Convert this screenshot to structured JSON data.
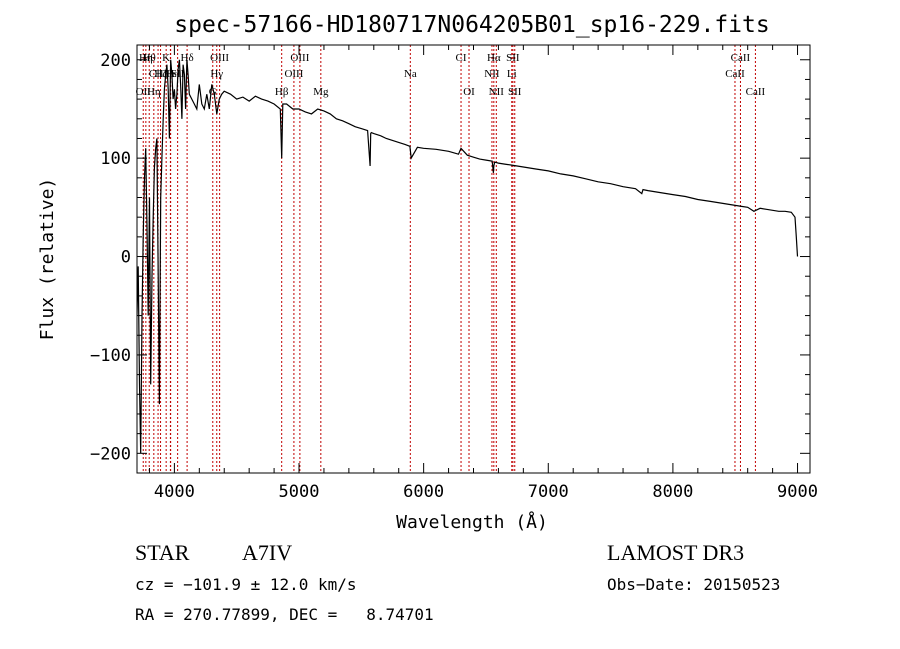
{
  "chart_data": {
    "type": "line",
    "title": "spec-57166-HD180717N064205B01_sp16-229.fits",
    "xlabel": "Wavelength (Å)",
    "ylabel": "Flux (relative)",
    "xlim": [
      3700,
      9100
    ],
    "ylim": [
      -220,
      215
    ],
    "x_ticks": [
      4000,
      5000,
      6000,
      7000,
      8000,
      9000
    ],
    "y_ticks": [
      -200,
      -100,
      0,
      100,
      200
    ],
    "grid": false,
    "series": [
      {
        "x": [
          3700,
          3710,
          3720,
          3730,
          3740,
          3750,
          3760,
          3770,
          3780,
          3790,
          3800,
          3810,
          3820,
          3830,
          3840,
          3850,
          3860,
          3870,
          3880,
          3890,
          3900,
          3910,
          3920,
          3930,
          3940,
          3950,
          3960,
          3970,
          3980,
          3990,
          4000,
          4010,
          4020,
          4030,
          4040,
          4050,
          4060,
          4070,
          4080,
          4090,
          4100,
          4110,
          4120,
          4140,
          4160,
          4180,
          4200,
          4220,
          4240,
          4260,
          4280,
          4300,
          4320,
          4340,
          4360,
          4380,
          4400,
          4450,
          4500,
          4550,
          4600,
          4650,
          4700,
          4750,
          4800,
          4850,
          4861,
          4870,
          4900,
          4950,
          5000,
          5050,
          5100,
          5150,
          5200,
          5250,
          5300,
          5350,
          5400,
          5450,
          5500,
          5550,
          5570,
          5575,
          5580,
          5600,
          5650,
          5700,
          5750,
          5800,
          5850,
          5890,
          5900,
          5950,
          6000,
          6100,
          6200,
          6280,
          6300,
          6350,
          6400,
          6450,
          6500,
          6550,
          6560,
          6563,
          6570,
          6600,
          6650,
          6700,
          6800,
          6900,
          7000,
          7100,
          7200,
          7300,
          7400,
          7500,
          7600,
          7700,
          7750,
          7760,
          7800,
          7900,
          8000,
          8100,
          8200,
          8300,
          8400,
          8500,
          8550,
          8600,
          8650,
          8700,
          8750,
          8800,
          8850,
          8900,
          8950,
          8980,
          8990,
          9000
        ],
        "y": [
          -60,
          -10,
          -130,
          -200,
          -60,
          20,
          80,
          110,
          30,
          -60,
          60,
          -130,
          -20,
          40,
          90,
          110,
          120,
          -20,
          -150,
          60,
          100,
          140,
          170,
          185,
          195,
          170,
          120,
          200,
          185,
          160,
          170,
          150,
          165,
          190,
          200,
          175,
          140,
          195,
          185,
          150,
          200,
          185,
          165,
          160,
          155,
          150,
          175,
          155,
          150,
          165,
          150,
          175,
          165,
          145,
          160,
          165,
          168,
          165,
          160,
          162,
          158,
          163,
          160,
          158,
          155,
          150,
          100,
          155,
          155,
          150,
          150,
          147,
          145,
          150,
          148,
          145,
          140,
          138,
          135,
          132,
          130,
          128,
          92,
          125,
          126,
          125,
          123,
          120,
          118,
          116,
          114,
          112,
          100,
          111,
          110,
          109,
          107,
          104,
          110,
          103,
          101,
          99,
          98,
          97,
          85,
          92,
          96,
          95,
          94,
          93,
          91,
          89,
          87,
          84,
          82,
          79,
          76,
          74,
          71,
          69,
          64,
          68,
          67,
          65,
          63,
          61,
          58,
          56,
          54,
          52,
          51,
          50,
          46,
          49,
          48,
          47,
          46,
          46,
          45,
          40,
          20,
          0
        ]
      }
    ],
    "line_labels": [
      {
        "wavelength": 3750,
        "label": "OII",
        "row": 3
      },
      {
        "wavelength": 3771,
        "label": "Hη",
        "row": 1
      },
      {
        "wavelength": 3798,
        "label": "Hθ",
        "row": 1
      },
      {
        "wavelength": 3835,
        "label": "Hη",
        "row": 3
      },
      {
        "wavelength": 3869,
        "label": "CIII",
        "row": 2
      },
      {
        "wavelength": 3889,
        "label": "Hζ",
        "row": 2
      },
      {
        "wavelength": 3934,
        "label": "K",
        "row": 1
      },
      {
        "wavelength": 3968,
        "label": "H",
        "row": 2
      },
      {
        "wavelength": 3970,
        "label": "Hε",
        "row": 2
      },
      {
        "wavelength": 4026,
        "label": "SII",
        "row": 2
      },
      {
        "wavelength": 4102,
        "label": "Hδ",
        "row": 1
      },
      {
        "wavelength": 4308,
        "label": "G",
        "row": 3
      },
      {
        "wavelength": 4340,
        "label": "Hγ",
        "row": 2
      },
      {
        "wavelength": 4363,
        "label": "OIII",
        "row": 1
      },
      {
        "wavelength": 4861,
        "label": "Hβ",
        "row": 3
      },
      {
        "wavelength": 4959,
        "label": "OIII",
        "row": 2
      },
      {
        "wavelength": 5007,
        "label": "OIII",
        "row": 1
      },
      {
        "wavelength": 5175,
        "label": "Mg",
        "row": 3
      },
      {
        "wavelength": 5893,
        "label": "Na",
        "row": 2
      },
      {
        "wavelength": 6300,
        "label": "CI",
        "row": 1
      },
      {
        "wavelength": 6364,
        "label": "OI",
        "row": 3
      },
      {
        "wavelength": 6548,
        "label": "NII",
        "row": 2
      },
      {
        "wavelength": 6563,
        "label": "Hα",
        "row": 1
      },
      {
        "wavelength": 6583,
        "label": "NII",
        "row": 3
      },
      {
        "wavelength": 6707,
        "label": "Li",
        "row": 2
      },
      {
        "wavelength": 6716,
        "label": "SII",
        "row": 1
      },
      {
        "wavelength": 6731,
        "label": "SII",
        "row": 3
      },
      {
        "wavelength": 8498,
        "label": "CaII",
        "row": 2
      },
      {
        "wavelength": 8542,
        "label": "CaII",
        "row": 1
      },
      {
        "wavelength": 8662,
        "label": "CaII",
        "row": 3
      }
    ]
  },
  "info": {
    "object_class": "STAR",
    "subclass": "A7IV",
    "survey": "LAMOST DR3",
    "cz_line": "cz = −101.9 ± 12.0 km/s",
    "obs_date": "Obs−Date: 20150523",
    "coords_line": "RA = 270.77899, DEC =   8.74701"
  },
  "colors": {
    "spectrum": "#000000",
    "line_markers": "#c00000",
    "axes": "#000000"
  }
}
